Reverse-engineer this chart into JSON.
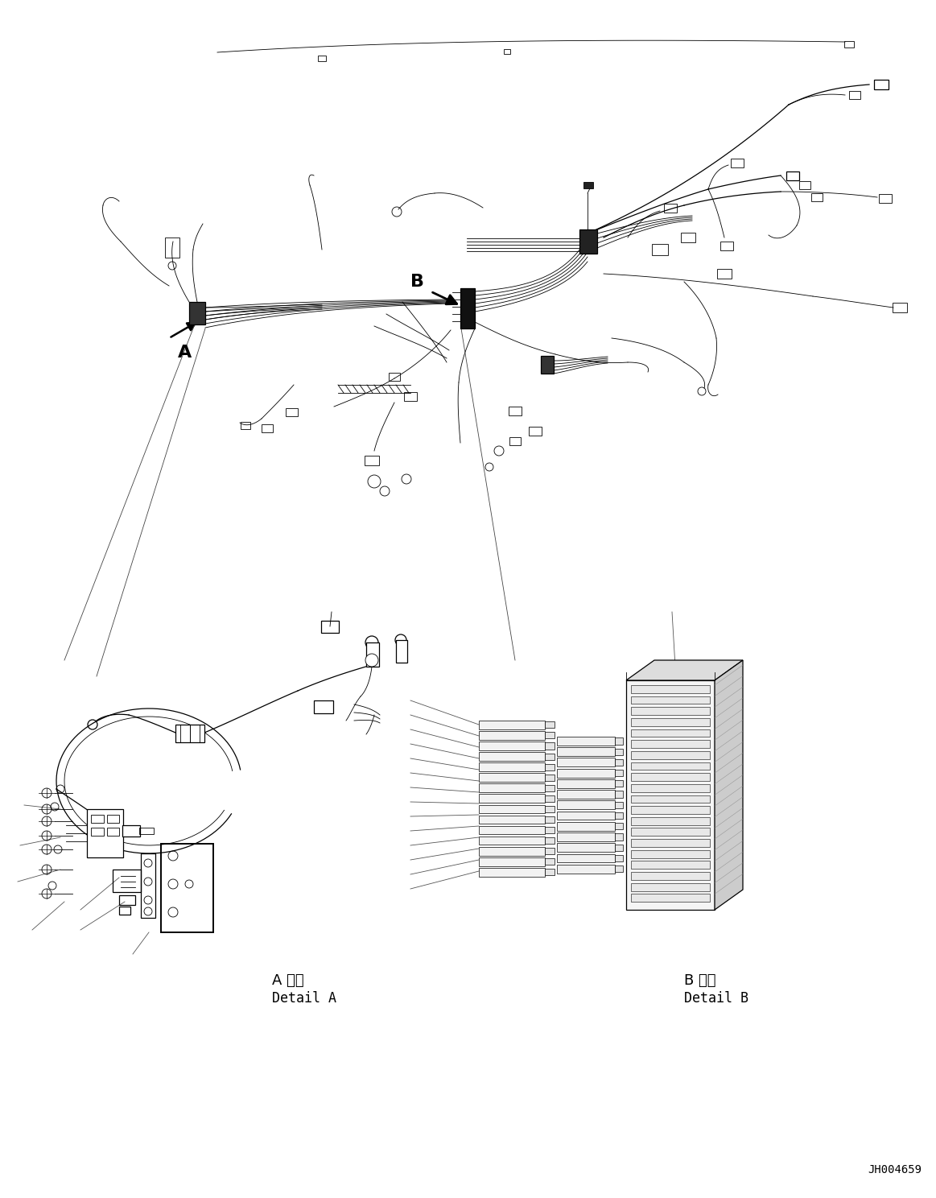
{
  "background_color": "#ffffff",
  "line_color": "#000000",
  "fig_width": 11.63,
  "fig_height": 14.88,
  "dpi": 100,
  "label_A": "A",
  "label_B": "B",
  "detail_A_jp": "A 詳細",
  "detail_A_en": "Detail A",
  "detail_B_jp": "B 詳細",
  "detail_B_en": "Detail B",
  "doc_number": "JH004659"
}
